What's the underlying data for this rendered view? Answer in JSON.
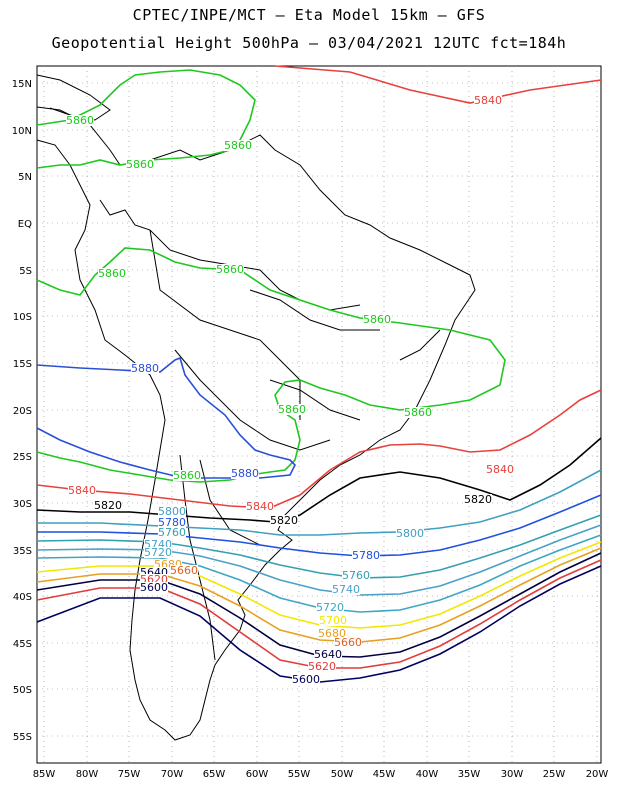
{
  "header": {
    "line1": "CPTEC/INPE/MCT –  Eta Model 15km – GFS",
    "line2": "Geopotential Height 500hPa – 03/04/2021 12UTC fct=184h"
  },
  "axes": {
    "lat_labels": [
      "15N",
      "10N",
      "5N",
      "EQ",
      "5S",
      "10S",
      "15S",
      "20S",
      "25S",
      "30S",
      "35S",
      "40S",
      "45S",
      "50S",
      "55S"
    ],
    "lon_labels": [
      "85W",
      "80W",
      "75W",
      "70W",
      "65W",
      "60W",
      "55W",
      "50W",
      "45W",
      "40W",
      "35W",
      "30W",
      "25W",
      "20W"
    ]
  },
  "colors": {
    "c5880": "#2a4fd8",
    "c5860": "#1ec81e",
    "c5840": "#e8413c",
    "c5820": "#000000",
    "c5800": "#3fa0c0",
    "c5780": "#1f50e0",
    "c5760": "#33a0b0",
    "c5740": "#4aa0c8",
    "c5720": "#3fa5c5",
    "c5700": "#f2e800",
    "c5680": "#e8a020",
    "c5660": "#e06020",
    "c5640": "#000040",
    "c5620": "#e03c3c",
    "c5600": "#000060"
  },
  "contour_labels": [
    {
      "id": "lbl-5840-ne",
      "text": "5840",
      "color": "c5840"
    },
    {
      "id": "lbl-5860-nw",
      "text": "5860",
      "color": "c5860"
    },
    {
      "id": "lbl-5860-n",
      "text": "5860",
      "color": "c5860"
    },
    {
      "id": "lbl-5860-col",
      "text": "5860",
      "color": "c5860"
    },
    {
      "id": "lbl-5860-pe",
      "text": "5860",
      "color": "c5860"
    },
    {
      "id": "lbl-5860-am",
      "text": "5860",
      "color": "c5860"
    },
    {
      "id": "lbl-5860-br",
      "text": "5860",
      "color": "c5860"
    },
    {
      "id": "lbl-5860-e",
      "text": "5860",
      "color": "c5860"
    },
    {
      "id": "lbl-5860-py",
      "text": "5860",
      "color": "c5860"
    },
    {
      "id": "lbl-5880-w",
      "text": "5880",
      "color": "c5880"
    },
    {
      "id": "lbl-5860-ar",
      "text": "5860",
      "color": "c5860"
    },
    {
      "id": "lbl-5880-ar",
      "text": "5880",
      "color": "c5880"
    },
    {
      "id": "lbl-5840-e",
      "text": "5840",
      "color": "c5840"
    },
    {
      "id": "lbl-5840-w",
      "text": "5840",
      "color": "c5840"
    },
    {
      "id": "lbl-5840-m",
      "text": "5840",
      "color": "c5840"
    },
    {
      "id": "lbl-5820-w",
      "text": "5820",
      "color": "c5820"
    },
    {
      "id": "lbl-5820-m",
      "text": "5820",
      "color": "c5820"
    },
    {
      "id": "lbl-5820-e",
      "text": "5820",
      "color": "c5820"
    },
    {
      "id": "lbl-5800-w",
      "text": "5800",
      "color": "c5800"
    },
    {
      "id": "lbl-5780-w",
      "text": "5780",
      "color": "c5780"
    },
    {
      "id": "lbl-5760-w",
      "text": "5760",
      "color": "c5760"
    },
    {
      "id": "lbl-5740-w",
      "text": "5740",
      "color": "c5740"
    },
    {
      "id": "lbl-5720-w",
      "text": "5720",
      "color": "c5720"
    },
    {
      "id": "lbl-5680-w",
      "text": "5680",
      "color": "c5680"
    },
    {
      "id": "lbl-5660-w",
      "text": "5660",
      "color": "c5660"
    },
    {
      "id": "lbl-5640-w",
      "text": "5640",
      "color": "c5640"
    },
    {
      "id": "lbl-5620-w",
      "text": "5620",
      "color": "c5620"
    },
    {
      "id": "lbl-5600-w",
      "text": "5600",
      "color": "c5600"
    },
    {
      "id": "lbl-5800-e",
      "text": "5800",
      "color": "c5800"
    },
    {
      "id": "lbl-5780-e",
      "text": "5780",
      "color": "c5780"
    },
    {
      "id": "lbl-5760-e",
      "text": "5760",
      "color": "c5760"
    },
    {
      "id": "lbl-5740-e",
      "text": "5740",
      "color": "c5740"
    },
    {
      "id": "lbl-5720-e",
      "text": "5720",
      "color": "c5720"
    },
    {
      "id": "lbl-5700-e",
      "text": "5700",
      "color": "c5700"
    },
    {
      "id": "lbl-5680-e",
      "text": "5680",
      "color": "c5680"
    },
    {
      "id": "lbl-5660-e",
      "text": "5660",
      "color": "c5660"
    },
    {
      "id": "lbl-5640-e",
      "text": "5640",
      "color": "c5640"
    },
    {
      "id": "lbl-5620-e",
      "text": "5620",
      "color": "c5620"
    },
    {
      "id": "lbl-5600-e",
      "text": "5600",
      "color": "c5600"
    }
  ]
}
